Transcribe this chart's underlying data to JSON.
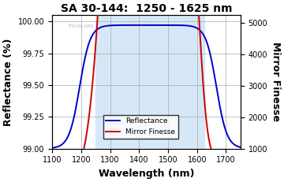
{
  "title": "SA 30-144:  1250 - 1625 nm",
  "xlabel": "Wavelength (nm)",
  "ylabel_left": "Reflectance (%)",
  "ylabel_right": "Mirror Finesse",
  "xlim": [
    1100,
    1750
  ],
  "ylim_left": [
    99.0,
    100.05
  ],
  "ylim_right": [
    1000,
    5250
  ],
  "xticks": [
    1100,
    1200,
    1300,
    1400,
    1500,
    1600,
    1700
  ],
  "yticks_left": [
    99.0,
    99.25,
    99.5,
    99.75,
    100.0
  ],
  "yticks_right": [
    1000,
    2000,
    3000,
    4000,
    5000
  ],
  "shaded_region": [
    1250,
    1625
  ],
  "shaded_color": "#d6e8f7",
  "reflectance_color": "#0000cc",
  "finesse_color": "#cc0000",
  "background_color": "#ffffff",
  "grid_color": "#aaaaaa",
  "watermark": "THORLABS",
  "legend_labels": [
    "Reflectance",
    "Mirror Finesse"
  ],
  "title_color": "#000000",
  "title_fontsize": 10,
  "axis_label_fontsize": 9
}
